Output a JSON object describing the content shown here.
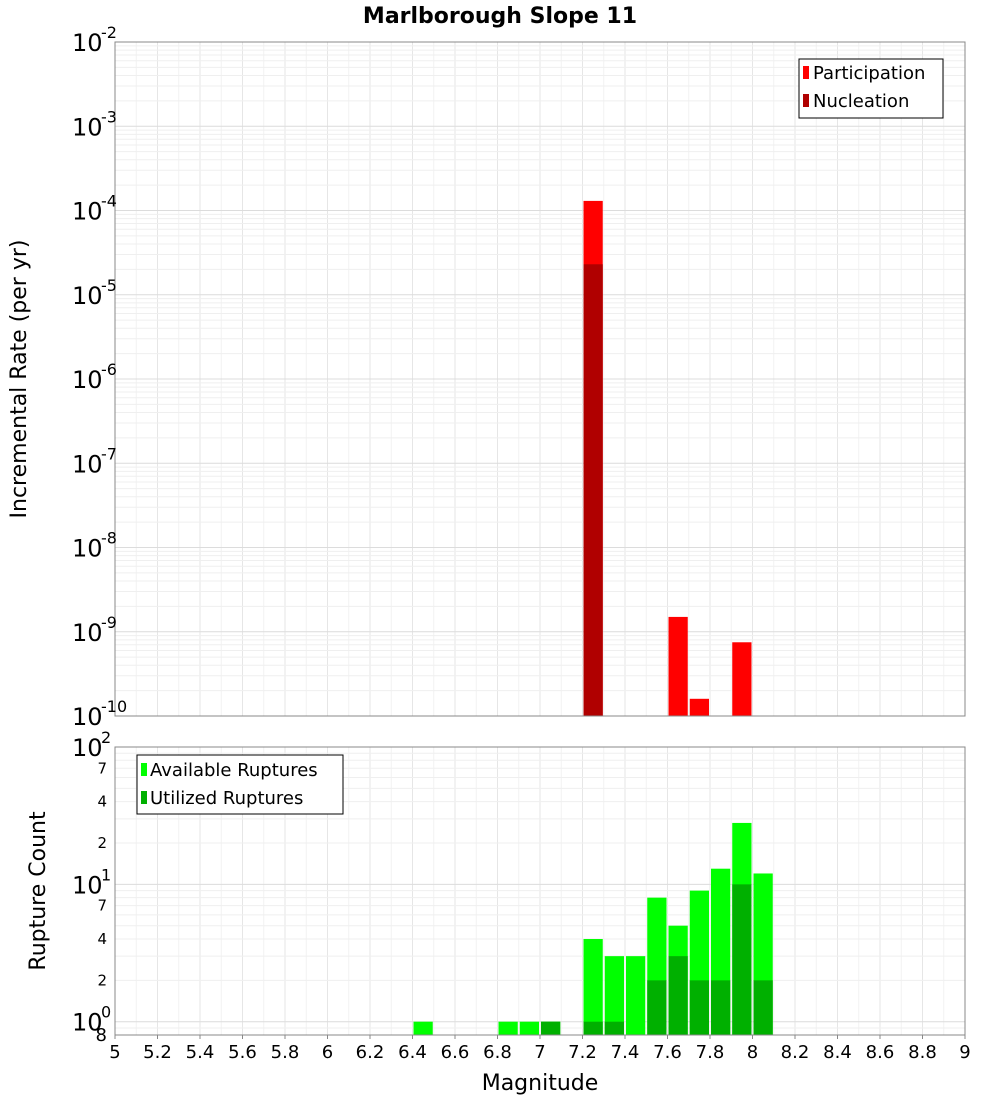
{
  "chart_data": [
    {
      "type": "bar",
      "title": "Marlborough Slope 11",
      "xlabel": "Magnitude",
      "ylabel": "Incremental Rate (per yr)",
      "yscale": "log",
      "xlim": [
        5,
        9
      ],
      "ylim": [
        1e-10,
        0.01
      ],
      "bin_width": 0.1,
      "major_ticks": [
        {
          "base": "10",
          "exp": "-2",
          "value": 0.01
        },
        {
          "base": "10",
          "exp": "-3",
          "value": 0.001
        },
        {
          "base": "10",
          "exp": "-4",
          "value": 0.0001
        },
        {
          "base": "10",
          "exp": "-5",
          "value": 1e-05
        },
        {
          "base": "10",
          "exp": "-6",
          "value": 1e-06
        },
        {
          "base": "10",
          "exp": "-7",
          "value": 1e-07
        },
        {
          "base": "10",
          "exp": "-8",
          "value": 1e-08
        },
        {
          "base": "10",
          "exp": "-9",
          "value": 1e-09
        },
        {
          "base": "10",
          "exp": "-10",
          "value": 1e-10
        }
      ],
      "legend": [
        "Participation",
        "Nucleation"
      ],
      "series": [
        {
          "name": "Participation",
          "color": "#ff0000",
          "x": [
            7.25,
            7.65,
            7.75,
            7.95
          ],
          "values": [
            0.00013,
            1.5e-09,
            1.6e-10,
            7.5e-10
          ]
        },
        {
          "name": "Nucleation",
          "color": "#b00000",
          "x": [
            7.25
          ],
          "values": [
            2.3e-05
          ]
        }
      ]
    },
    {
      "type": "bar",
      "xlabel": "Magnitude",
      "ylabel": "Rupture Count",
      "yscale": "log",
      "xlim": [
        5,
        9
      ],
      "ylim": [
        0.8,
        100
      ],
      "bin_width": 0.1,
      "major_ticks": [
        {
          "base": "10",
          "exp": "2",
          "value": 100
        },
        {
          "base": "10",
          "exp": "1",
          "value": 10
        },
        {
          "base": "10",
          "exp": "0",
          "value": 1
        }
      ],
      "minor_ticks": [
        {
          "label": "7",
          "value": 70
        },
        {
          "label": "4",
          "value": 40
        },
        {
          "label": "2",
          "value": 20
        },
        {
          "label": "7",
          "value": 7
        },
        {
          "label": "4",
          "value": 4
        },
        {
          "label": "2",
          "value": 2
        },
        {
          "label": "8",
          "value": 0.8
        }
      ],
      "legend": [
        "Available Ruptures",
        "Utilized Ruptures"
      ],
      "series": [
        {
          "name": "Available Ruptures",
          "color": "#00ff00",
          "x": [
            6.45,
            6.85,
            6.95,
            7.05,
            7.25,
            7.35,
            7.45,
            7.55,
            7.65,
            7.75,
            7.85,
            7.95,
            8.05
          ],
          "values": [
            1,
            1,
            1,
            1,
            4,
            3,
            3,
            8,
            5,
            9,
            13,
            28,
            12
          ]
        },
        {
          "name": "Utilized Ruptures",
          "color": "#00b000",
          "x": [
            7.05,
            7.25,
            7.35,
            7.55,
            7.65,
            7.75,
            7.85,
            7.95,
            8.05
          ],
          "values": [
            1,
            1,
            1,
            2,
            3,
            2,
            2,
            10,
            2
          ]
        }
      ]
    }
  ],
  "x_ticks": [
    "5",
    "5.2",
    "5.4",
    "5.6",
    "5.8",
    "6",
    "6.2",
    "6.4",
    "6.6",
    "6.8",
    "7",
    "7.2",
    "7.4",
    "7.6",
    "7.8",
    "8",
    "8.2",
    "8.4",
    "8.6",
    "8.8",
    "9"
  ],
  "x_tick_values": [
    5,
    5.2,
    5.4,
    5.6,
    5.8,
    6,
    6.2,
    6.4,
    6.6,
    6.8,
    7,
    7.2,
    7.4,
    7.6,
    7.8,
    8,
    8.2,
    8.4,
    8.6,
    8.8,
    9
  ]
}
